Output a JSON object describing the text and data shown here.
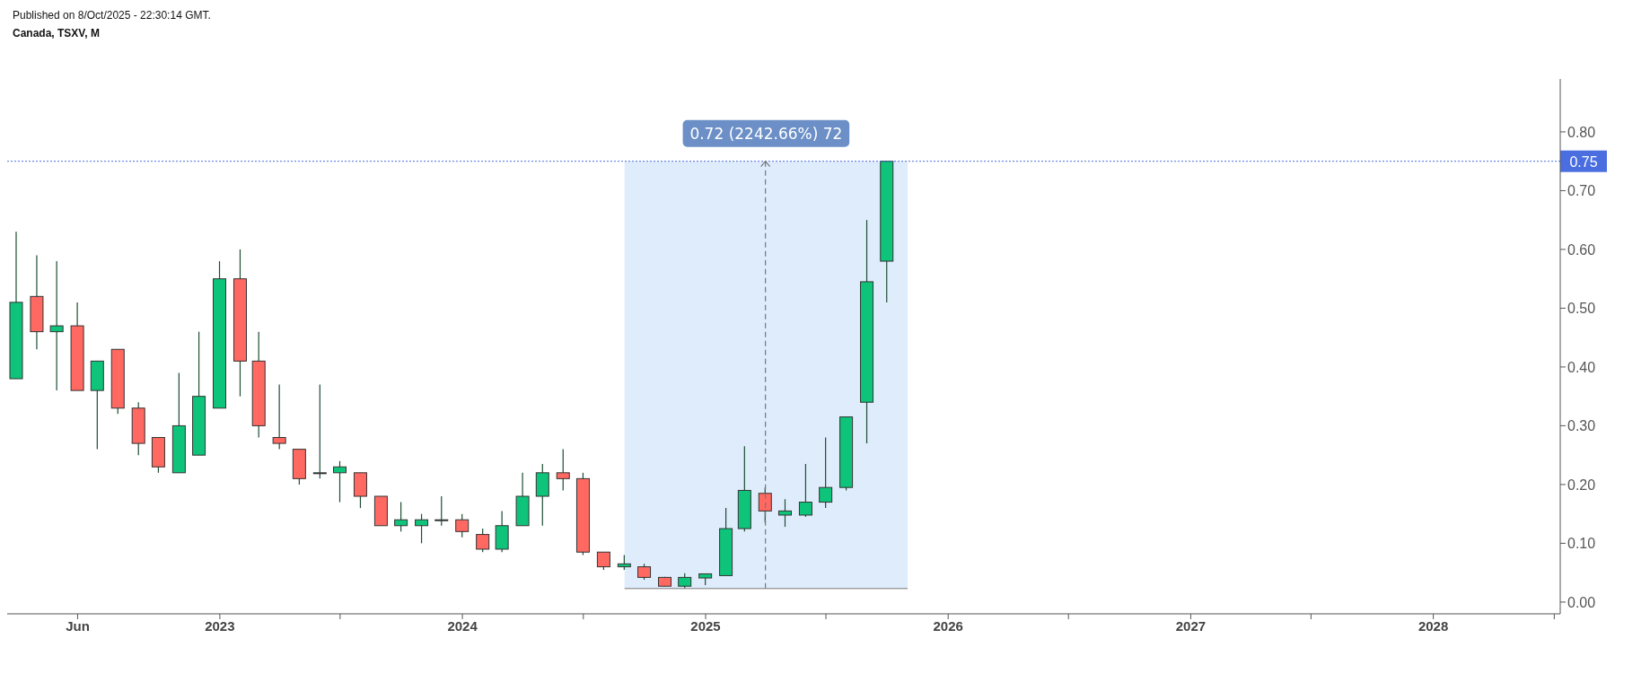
{
  "chart_data": {
    "type": "candlestick",
    "title": "Canada, TSXV, M",
    "annotations": [
      "Published on 8/Oct/2025 - 22:30:14 GMT."
    ],
    "x": [
      "2022-03",
      "2022-04",
      "2022-05",
      "2022-06",
      "2022-07",
      "2022-08",
      "2022-09",
      "2022-10",
      "2022-11",
      "2022-12",
      "2023-01",
      "2023-02",
      "2023-03",
      "2023-04",
      "2023-05",
      "2023-06",
      "2023-07",
      "2023-08",
      "2023-09",
      "2023-10",
      "2023-11",
      "2023-12",
      "2024-01",
      "2024-02",
      "2024-03",
      "2024-04",
      "2024-05",
      "2024-06",
      "2024-07",
      "2024-08",
      "2024-09",
      "2024-10",
      "2024-11",
      "2024-12",
      "2025-01",
      "2025-02",
      "2025-03",
      "2025-04",
      "2025-05",
      "2025-06",
      "2025-07",
      "2025-08",
      "2025-09",
      "2025-10"
    ],
    "ohlc": [
      [
        0.38,
        0.63,
        0.38,
        0.51
      ],
      [
        0.52,
        0.59,
        0.43,
        0.46
      ],
      [
        0.46,
        0.58,
        0.36,
        0.47
      ],
      [
        0.47,
        0.51,
        0.36,
        0.36
      ],
      [
        0.36,
        0.41,
        0.26,
        0.41
      ],
      [
        0.43,
        0.43,
        0.32,
        0.33
      ],
      [
        0.33,
        0.34,
        0.25,
        0.27
      ],
      [
        0.28,
        0.28,
        0.22,
        0.23
      ],
      [
        0.22,
        0.39,
        0.22,
        0.3
      ],
      [
        0.25,
        0.46,
        0.25,
        0.35
      ],
      [
        0.33,
        0.58,
        0.33,
        0.55
      ],
      [
        0.55,
        0.6,
        0.35,
        0.41
      ],
      [
        0.41,
        0.46,
        0.28,
        0.3
      ],
      [
        0.28,
        0.37,
        0.26,
        0.27
      ],
      [
        0.26,
        0.26,
        0.2,
        0.21
      ],
      [
        0.22,
        0.37,
        0.21,
        0.22
      ],
      [
        0.22,
        0.24,
        0.17,
        0.23
      ],
      [
        0.22,
        0.22,
        0.16,
        0.18
      ],
      [
        0.18,
        0.18,
        0.13,
        0.13
      ],
      [
        0.13,
        0.17,
        0.12,
        0.14
      ],
      [
        0.13,
        0.15,
        0.1,
        0.14
      ],
      [
        0.14,
        0.18,
        0.13,
        0.14
      ],
      [
        0.14,
        0.15,
        0.11,
        0.12
      ],
      [
        0.115,
        0.125,
        0.085,
        0.09
      ],
      [
        0.09,
        0.155,
        0.085,
        0.13
      ],
      [
        0.13,
        0.22,
        0.13,
        0.18
      ],
      [
        0.18,
        0.235,
        0.13,
        0.22
      ],
      [
        0.22,
        0.26,
        0.19,
        0.21
      ],
      [
        0.21,
        0.22,
        0.08,
        0.085
      ],
      [
        0.085,
        0.085,
        0.055,
        0.06
      ],
      [
        0.06,
        0.08,
        0.055,
        0.065
      ],
      [
        0.06,
        0.065,
        0.038,
        0.042
      ],
      [
        0.042,
        0.043,
        0.027,
        0.027
      ],
      [
        0.027,
        0.049,
        0.023,
        0.042
      ],
      [
        0.041,
        0.048,
        0.029,
        0.048
      ],
      [
        0.045,
        0.16,
        0.045,
        0.125
      ],
      [
        0.125,
        0.265,
        0.12,
        0.19
      ],
      [
        0.185,
        0.195,
        0.135,
        0.155
      ],
      [
        0.148,
        0.175,
        0.128,
        0.155
      ],
      [
        0.148,
        0.235,
        0.145,
        0.17
      ],
      [
        0.17,
        0.28,
        0.16,
        0.195
      ],
      [
        0.195,
        0.315,
        0.19,
        0.315
      ],
      [
        0.34,
        0.65,
        0.27,
        0.545
      ],
      [
        0.58,
        0.75,
        0.51,
        0.75
      ]
    ],
    "colors": [
      "#0ec47a",
      "#ff6961",
      "#0ec47a",
      "#ff6961",
      "#0ec47a",
      "#ff6961",
      "#ff6961",
      "#ff6961",
      "#0ec47a",
      "#0ec47a",
      "#0ec47a",
      "#ff6961",
      "#ff6961",
      "#ff6961",
      "#ff6961",
      "#0ec47a",
      "#0ec47a",
      "#ff6961",
      "#ff6961",
      "#0ec47a",
      "#0ec47a",
      "#0ec47a",
      "#ff6961",
      "#ff6961",
      "#0ec47a",
      "#0ec47a",
      "#0ec47a",
      "#ff6961",
      "#ff6961",
      "#ff6961",
      "#0ec47a",
      "#ff6961",
      "#ff6961",
      "#0ec47a",
      "#0ec47a",
      "#0ec47a",
      "#0ec47a",
      "#ff6961",
      "#0ec47a",
      "#0ec47a",
      "#0ec47a",
      "#0ec47a",
      "#0ec47a",
      "#0ec47a"
    ],
    "xlim": [
      "2022-02-15",
      "2028-07-10"
    ],
    "xticks": [
      {
        "value": "2022-06",
        "label": "Jun"
      },
      {
        "value": "2023-01",
        "label": "2023"
      },
      {
        "value": "2023-07",
        "label": null
      },
      {
        "value": "2024-01",
        "label": "2024"
      },
      {
        "value": "2024-07",
        "label": null
      },
      {
        "value": "2025-01",
        "label": "2025"
      },
      {
        "value": "2025-07",
        "label": null
      },
      {
        "value": "2026-01",
        "label": "2026"
      },
      {
        "value": "2026-07",
        "label": null
      },
      {
        "value": "2027-01",
        "label": "2027"
      },
      {
        "value": "2027-07",
        "label": null
      },
      {
        "value": "2028-01",
        "label": "2028"
      },
      {
        "value": "2028-07",
        "label": null
      }
    ],
    "ylim": [
      -0.02,
      0.89
    ],
    "yticks": [
      {
        "value": 0,
        "label": "0.00"
      },
      {
        "value": 0.1,
        "label": "0.10"
      },
      {
        "value": 0.2,
        "label": "0.20"
      },
      {
        "value": 0.3,
        "label": "0.30"
      },
      {
        "value": 0.4,
        "label": "0.40"
      },
      {
        "value": 0.5,
        "label": "0.50"
      },
      {
        "value": 0.6,
        "label": "0.60"
      },
      {
        "value": 0.7,
        "label": "0.70"
      },
      {
        "value": 0.8,
        "label": "0.80"
      }
    ],
    "ref_lines": [
      {
        "axis": "y",
        "value": 0.75,
        "label": "0.75",
        "color": "#4a6ee0",
        "line_style": "dotted"
      },
      {
        "axis": "x",
        "value": "2025-04",
        "label": null,
        "color": "#777777",
        "line_style": "dashed"
      },
      {
        "axis": "y",
        "value": 0.023,
        "label": null,
        "color": "#777777",
        "line_style": "solid"
      }
    ],
    "bands": [
      {
        "axis": "x",
        "from": "2024-09",
        "to": "2025-11",
        "label": "0.72 (2242.66%) 72",
        "color": "#dfecfc"
      }
    ],
    "grid": false,
    "legend": false
  }
}
